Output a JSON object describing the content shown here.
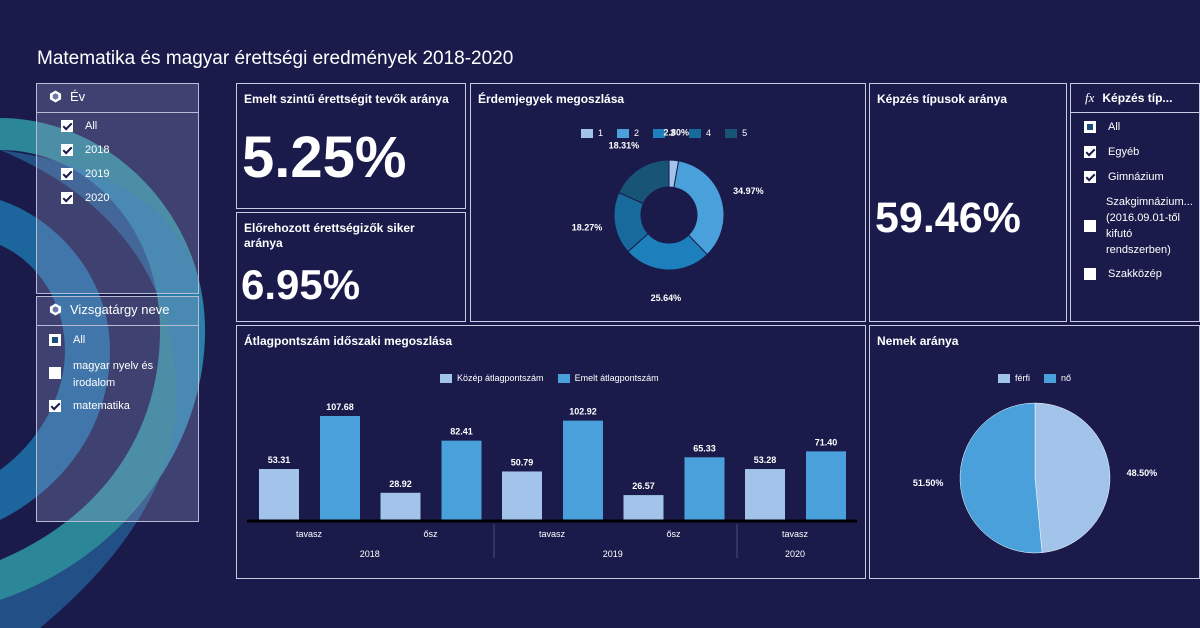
{
  "header": {
    "title": "Matematika és magyar érettségi eredmények 2018-2020"
  },
  "filters": {
    "year": {
      "label": "Év",
      "items": [
        {
          "label": "All",
          "checked": true
        },
        {
          "label": "2018",
          "checked": true
        },
        {
          "label": "2019",
          "checked": true
        },
        {
          "label": "2020",
          "checked": true
        }
      ]
    },
    "subject": {
      "label": "Vizsgatárgy neve",
      "items": [
        {
          "label": "All",
          "state": "partial"
        },
        {
          "label": "magyar nyelv és irodalom",
          "state": "unchecked"
        },
        {
          "label": "matematika",
          "state": "checked"
        }
      ]
    },
    "training_type": {
      "label": "Képzés típ...",
      "icon_label": "fx",
      "items": [
        {
          "label": "All",
          "state": "partial"
        },
        {
          "label": "Egyéb",
          "state": "checked"
        },
        {
          "label": "Gimnázium",
          "state": "checked"
        },
        {
          "label": "Szakgimnázium... (2016.09.01-től kifutó rendszerben)",
          "state": "unchecked"
        },
        {
          "label": "Szakközép",
          "state": "unchecked"
        }
      ]
    }
  },
  "kpis": {
    "advanced_ratio": {
      "title": "Emelt szintű érettségit tevők aránya",
      "value": "5.25%"
    },
    "early_success": {
      "title": "Előrehozott érettségizők siker aránya",
      "value": "6.95%"
    },
    "training_ratio": {
      "title": "Képzés típusok aránya",
      "value": "59.46%"
    }
  },
  "grade_panel": {
    "title": "Érdemjegyek megoszlása"
  },
  "avg_panel": {
    "title": "Átlagpontszám időszaki megoszlása"
  },
  "gender_panel": {
    "title": "Nemek aránya"
  },
  "colors": {
    "background": "#1a1b4b",
    "light_blue": "#a3c4ea",
    "mid_blue": "#4aa0da",
    "blue3": "#1d80bd",
    "blue4": "#186a9c",
    "blue5": "#175475"
  },
  "chart_data": [
    {
      "type": "donut",
      "title": "Érdemjegyek megoszlása",
      "categories": [
        "1",
        "2",
        "3",
        "4",
        "5"
      ],
      "values": [
        2.8,
        34.97,
        25.64,
        18.27,
        18.31
      ],
      "labels": [
        "2.80%",
        "34.97%",
        "25.64%",
        "18.27%",
        "18.31%"
      ],
      "colors": [
        "#a3c4ea",
        "#4aa0da",
        "#1d80bd",
        "#186a9c",
        "#175475"
      ],
      "legend": "top"
    },
    {
      "type": "bar",
      "title": "Átlagpontszám időszaki megoszlása",
      "categories": [
        "tavasz",
        "ősz",
        "tavasz",
        "ősz",
        "tavasz"
      ],
      "groups": [
        {
          "label": "2018",
          "span": 2
        },
        {
          "label": "2019",
          "span": 2
        },
        {
          "label": "2020",
          "span": 1
        }
      ],
      "series": [
        {
          "name": "Közép átlagpontszám",
          "color": "#a3c4ea",
          "values": [
            53.31,
            28.92,
            50.79,
            26.57,
            53.28
          ]
        },
        {
          "name": "Emelt átlagpontszám",
          "color": "#4aa0da",
          "values": [
            107.68,
            82.41,
            102.92,
            65.33,
            71.4
          ]
        }
      ],
      "labels": [
        [
          "53.31",
          "28.92",
          "50.79",
          "26.57",
          "53.28"
        ],
        [
          "107.68",
          "82.41",
          "102.92",
          "65.33",
          "71.40"
        ]
      ],
      "ylim": [
        0,
        120
      ],
      "legend": "top"
    },
    {
      "type": "pie",
      "title": "Nemek aránya",
      "categories": [
        "férfi",
        "nő"
      ],
      "values": [
        48.5,
        51.5
      ],
      "labels": [
        "48.50%",
        "51.50%"
      ],
      "colors": [
        "#a3c4ea",
        "#4aa0da"
      ],
      "legend": "top"
    }
  ]
}
